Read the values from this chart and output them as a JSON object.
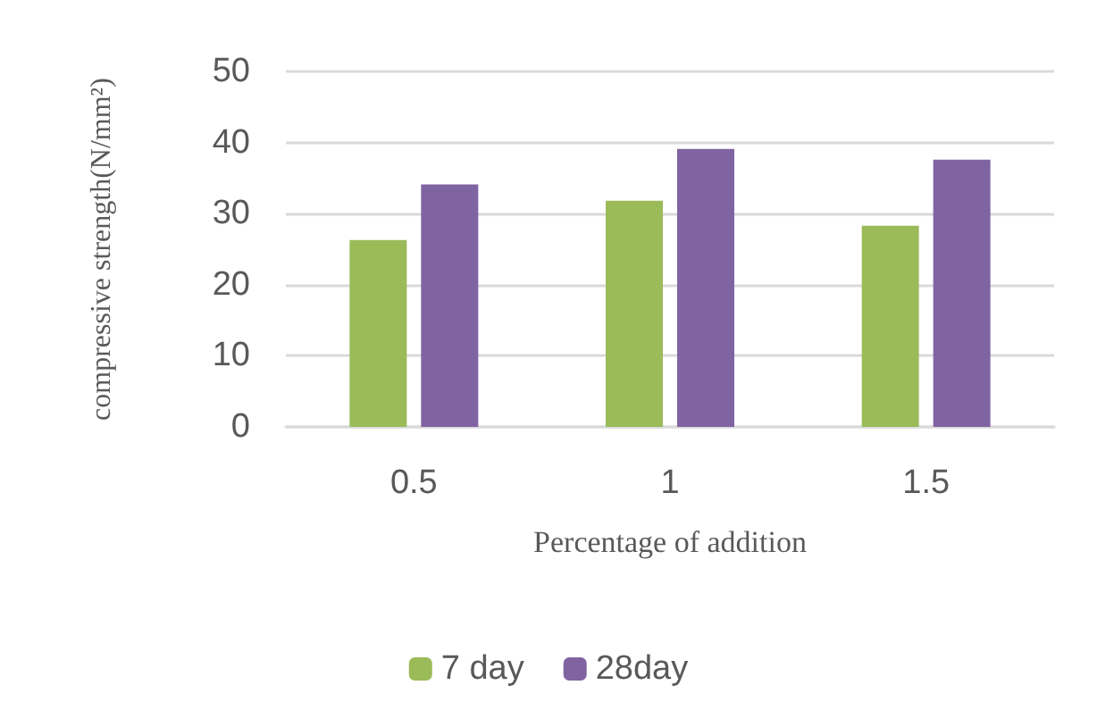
{
  "chart_data": {
    "type": "bar",
    "xlabel": "Percentage of addition",
    "ylabel": "compressive strength(N/mm²)",
    "categories": [
      "0.5",
      "1",
      "1.5"
    ],
    "series": [
      {
        "name": "7 day",
        "color": "#9bbb59",
        "values": [
          26.3,
          31.8,
          28.3
        ]
      },
      {
        "name": "28day",
        "color": "#8064a2",
        "values": [
          34.1,
          39.1,
          37.6
        ]
      }
    ],
    "ylim": [
      0,
      50
    ],
    "yticks": [
      0,
      10,
      20,
      30,
      40,
      50
    ],
    "grid": "y",
    "legend": "bottom"
  }
}
